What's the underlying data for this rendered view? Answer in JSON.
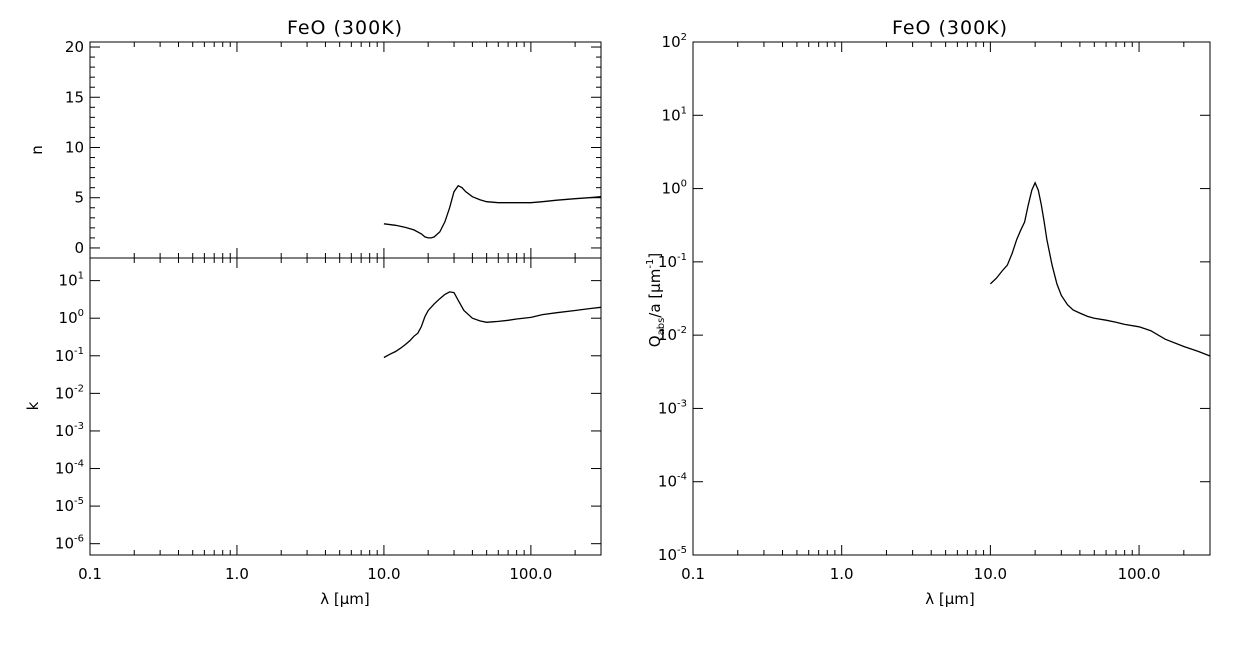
{
  "chart_data": [
    {
      "id": "n",
      "type": "line",
      "title": "FeO (300K)",
      "xlabel": "",
      "ylabel": "n",
      "xscale": "log",
      "yscale": "linear",
      "xlim": [
        0.1,
        300
      ],
      "ylim": [
        -1,
        20.5
      ],
      "xticks": [
        {
          "v": 0.1,
          "label": "0.1"
        },
        {
          "v": 1,
          "label": "1.0"
        },
        {
          "v": 10,
          "label": "10.0"
        },
        {
          "v": 100,
          "label": "100.0"
        }
      ],
      "yticks": [
        {
          "v": 0,
          "label": "0"
        },
        {
          "v": 5,
          "label": "5"
        },
        {
          "v": 10,
          "label": "10"
        },
        {
          "v": 15,
          "label": "15"
        },
        {
          "v": 20,
          "label": "20"
        }
      ],
      "series": [
        {
          "x": [
            10,
            12,
            14,
            16,
            18,
            19,
            20,
            21,
            22,
            24,
            26,
            28,
            30,
            32,
            34,
            36,
            40,
            45,
            50,
            60,
            70,
            80,
            100,
            120,
            150,
            200,
            250,
            300
          ],
          "y": [
            2.4,
            2.25,
            2.05,
            1.8,
            1.4,
            1.1,
            1.0,
            1.0,
            1.1,
            1.6,
            2.6,
            4.0,
            5.6,
            6.2,
            6.0,
            5.6,
            5.1,
            4.8,
            4.6,
            4.5,
            4.5,
            4.5,
            4.5,
            4.6,
            4.75,
            4.9,
            5.0,
            5.1
          ]
        }
      ]
    },
    {
      "id": "k",
      "type": "line",
      "title": "",
      "xlabel": "λ [μm]",
      "ylabel": "k",
      "xscale": "log",
      "yscale": "log",
      "xlim": [
        0.1,
        300
      ],
      "ylim": [
        5e-07,
        40
      ],
      "xticks": [
        {
          "v": 0.1,
          "label": "0.1"
        },
        {
          "v": 1,
          "label": "1.0"
        },
        {
          "v": 10,
          "label": "10.0"
        },
        {
          "v": 100,
          "label": "100.0"
        }
      ],
      "yticks": [
        {
          "v": 10,
          "label": "10",
          "exp": "1"
        },
        {
          "v": 1,
          "label": "10",
          "exp": "0"
        },
        {
          "v": 0.1,
          "label": "10",
          "exp": "-1"
        },
        {
          "v": 0.01,
          "label": "10",
          "exp": "-2"
        },
        {
          "v": 0.001,
          "label": "10",
          "exp": "-3"
        },
        {
          "v": 0.0001,
          "label": "10",
          "exp": "-4"
        },
        {
          "v": 1e-05,
          "label": "10",
          "exp": "-5"
        },
        {
          "v": 1e-06,
          "label": "10",
          "exp": "-6"
        }
      ],
      "series": [
        {
          "x": [
            10,
            11,
            12,
            13,
            14,
            15,
            16,
            17,
            18,
            19,
            20,
            22,
            24,
            26,
            28,
            30,
            32,
            35,
            40,
            45,
            50,
            55,
            60,
            70,
            80,
            100,
            120,
            150,
            200,
            250,
            300
          ],
          "y": [
            0.09,
            0.11,
            0.13,
            0.16,
            0.2,
            0.25,
            0.33,
            0.4,
            0.6,
            1.1,
            1.6,
            2.4,
            3.3,
            4.3,
            5.0,
            4.8,
            3.0,
            1.6,
            1.0,
            0.85,
            0.78,
            0.8,
            0.82,
            0.88,
            0.95,
            1.05,
            1.25,
            1.4,
            1.6,
            1.8,
            1.95
          ]
        }
      ]
    },
    {
      "id": "qabs",
      "type": "line",
      "title": "FeO (300K)",
      "xlabel": "λ [μm]",
      "ylabel": "Q_abs/a [μm^-1]",
      "xscale": "log",
      "yscale": "log",
      "xlim": [
        0.1,
        300
      ],
      "ylim": [
        1e-05,
        100
      ],
      "xticks": [
        {
          "v": 0.1,
          "label": "0.1"
        },
        {
          "v": 1,
          "label": "1.0"
        },
        {
          "v": 10,
          "label": "10.0"
        },
        {
          "v": 100,
          "label": "100.0"
        }
      ],
      "yticks": [
        {
          "v": 100,
          "label": "10",
          "exp": "2"
        },
        {
          "v": 10,
          "label": "10",
          "exp": "1"
        },
        {
          "v": 1,
          "label": "10",
          "exp": "0"
        },
        {
          "v": 0.1,
          "label": "10",
          "exp": "-1"
        },
        {
          "v": 0.01,
          "label": "10",
          "exp": "-2"
        },
        {
          "v": 0.001,
          "label": "10",
          "exp": "-3"
        },
        {
          "v": 0.0001,
          "label": "10",
          "exp": "-4"
        },
        {
          "v": 1e-05,
          "label": "10",
          "exp": "-5"
        }
      ],
      "series": [
        {
          "x": [
            10,
            11,
            12,
            13,
            14,
            15,
            16,
            17,
            18,
            19,
            20,
            21,
            22,
            23,
            24,
            26,
            28,
            30,
            33,
            36,
            40,
            45,
            50,
            60,
            70,
            80,
            100,
            120,
            150,
            200,
            250,
            300
          ],
          "y": [
            0.05,
            0.06,
            0.075,
            0.09,
            0.13,
            0.2,
            0.27,
            0.35,
            0.6,
            0.95,
            1.2,
            0.95,
            0.6,
            0.35,
            0.2,
            0.09,
            0.05,
            0.035,
            0.026,
            0.022,
            0.02,
            0.018,
            0.017,
            0.016,
            0.015,
            0.014,
            0.013,
            0.0115,
            0.0088,
            0.007,
            0.006,
            0.0052
          ]
        }
      ]
    }
  ]
}
